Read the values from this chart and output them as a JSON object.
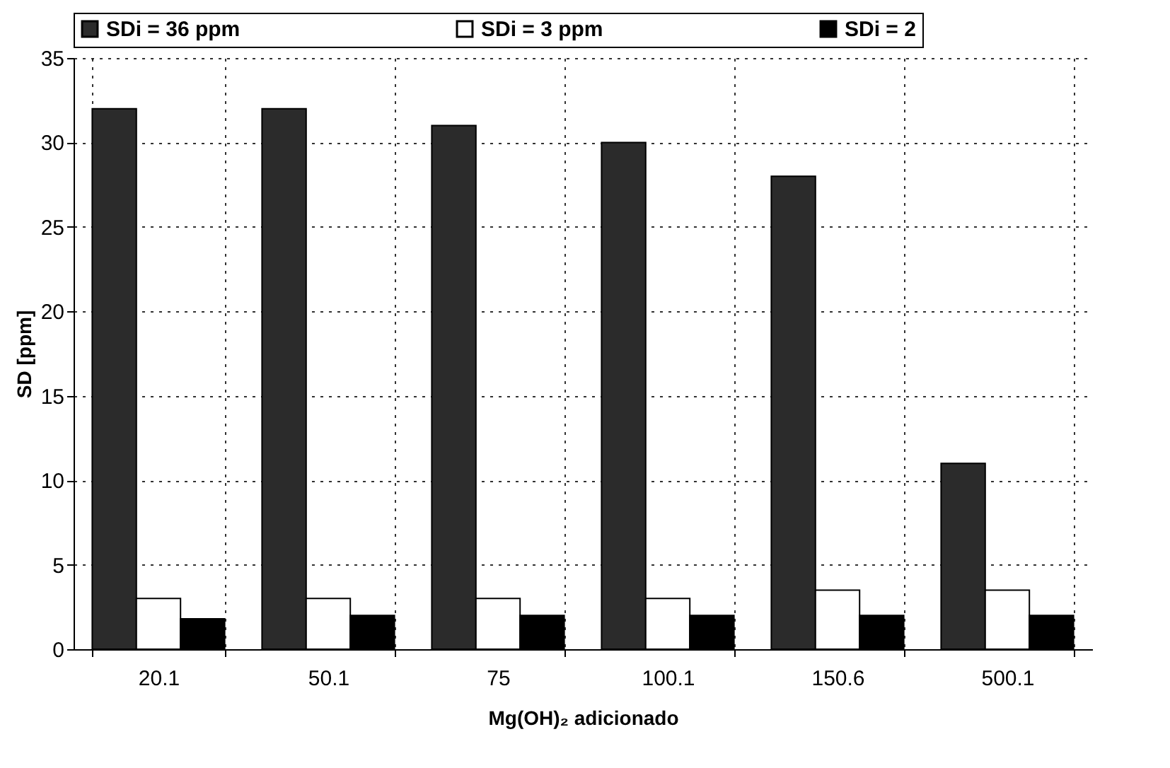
{
  "chart_data": {
    "type": "bar",
    "xlabel": "Mg(OH)₂ adicionado",
    "ylabel": "SD [ppm]",
    "categories": [
      "20.1",
      "50.1",
      "75",
      "100.1",
      "150.6",
      "500.1"
    ],
    "series": [
      {
        "name": "SDi = 36 ppm",
        "color": "#2b2b2b",
        "values": [
          32,
          32,
          31,
          30,
          28,
          11
        ]
      },
      {
        "name": "SDi = 3 ppm",
        "color": "#ffffff",
        "values": [
          3,
          3,
          3,
          3,
          3.5,
          3.5
        ]
      },
      {
        "name": "SDi = 2",
        "color": "#000000",
        "values": [
          1.8,
          2,
          2,
          2,
          2,
          2
        ]
      }
    ],
    "ylim": [
      0,
      35
    ],
    "yticks": [
      0,
      5,
      10,
      15,
      20,
      25,
      30,
      35
    ],
    "grid": true,
    "legend": "top"
  }
}
